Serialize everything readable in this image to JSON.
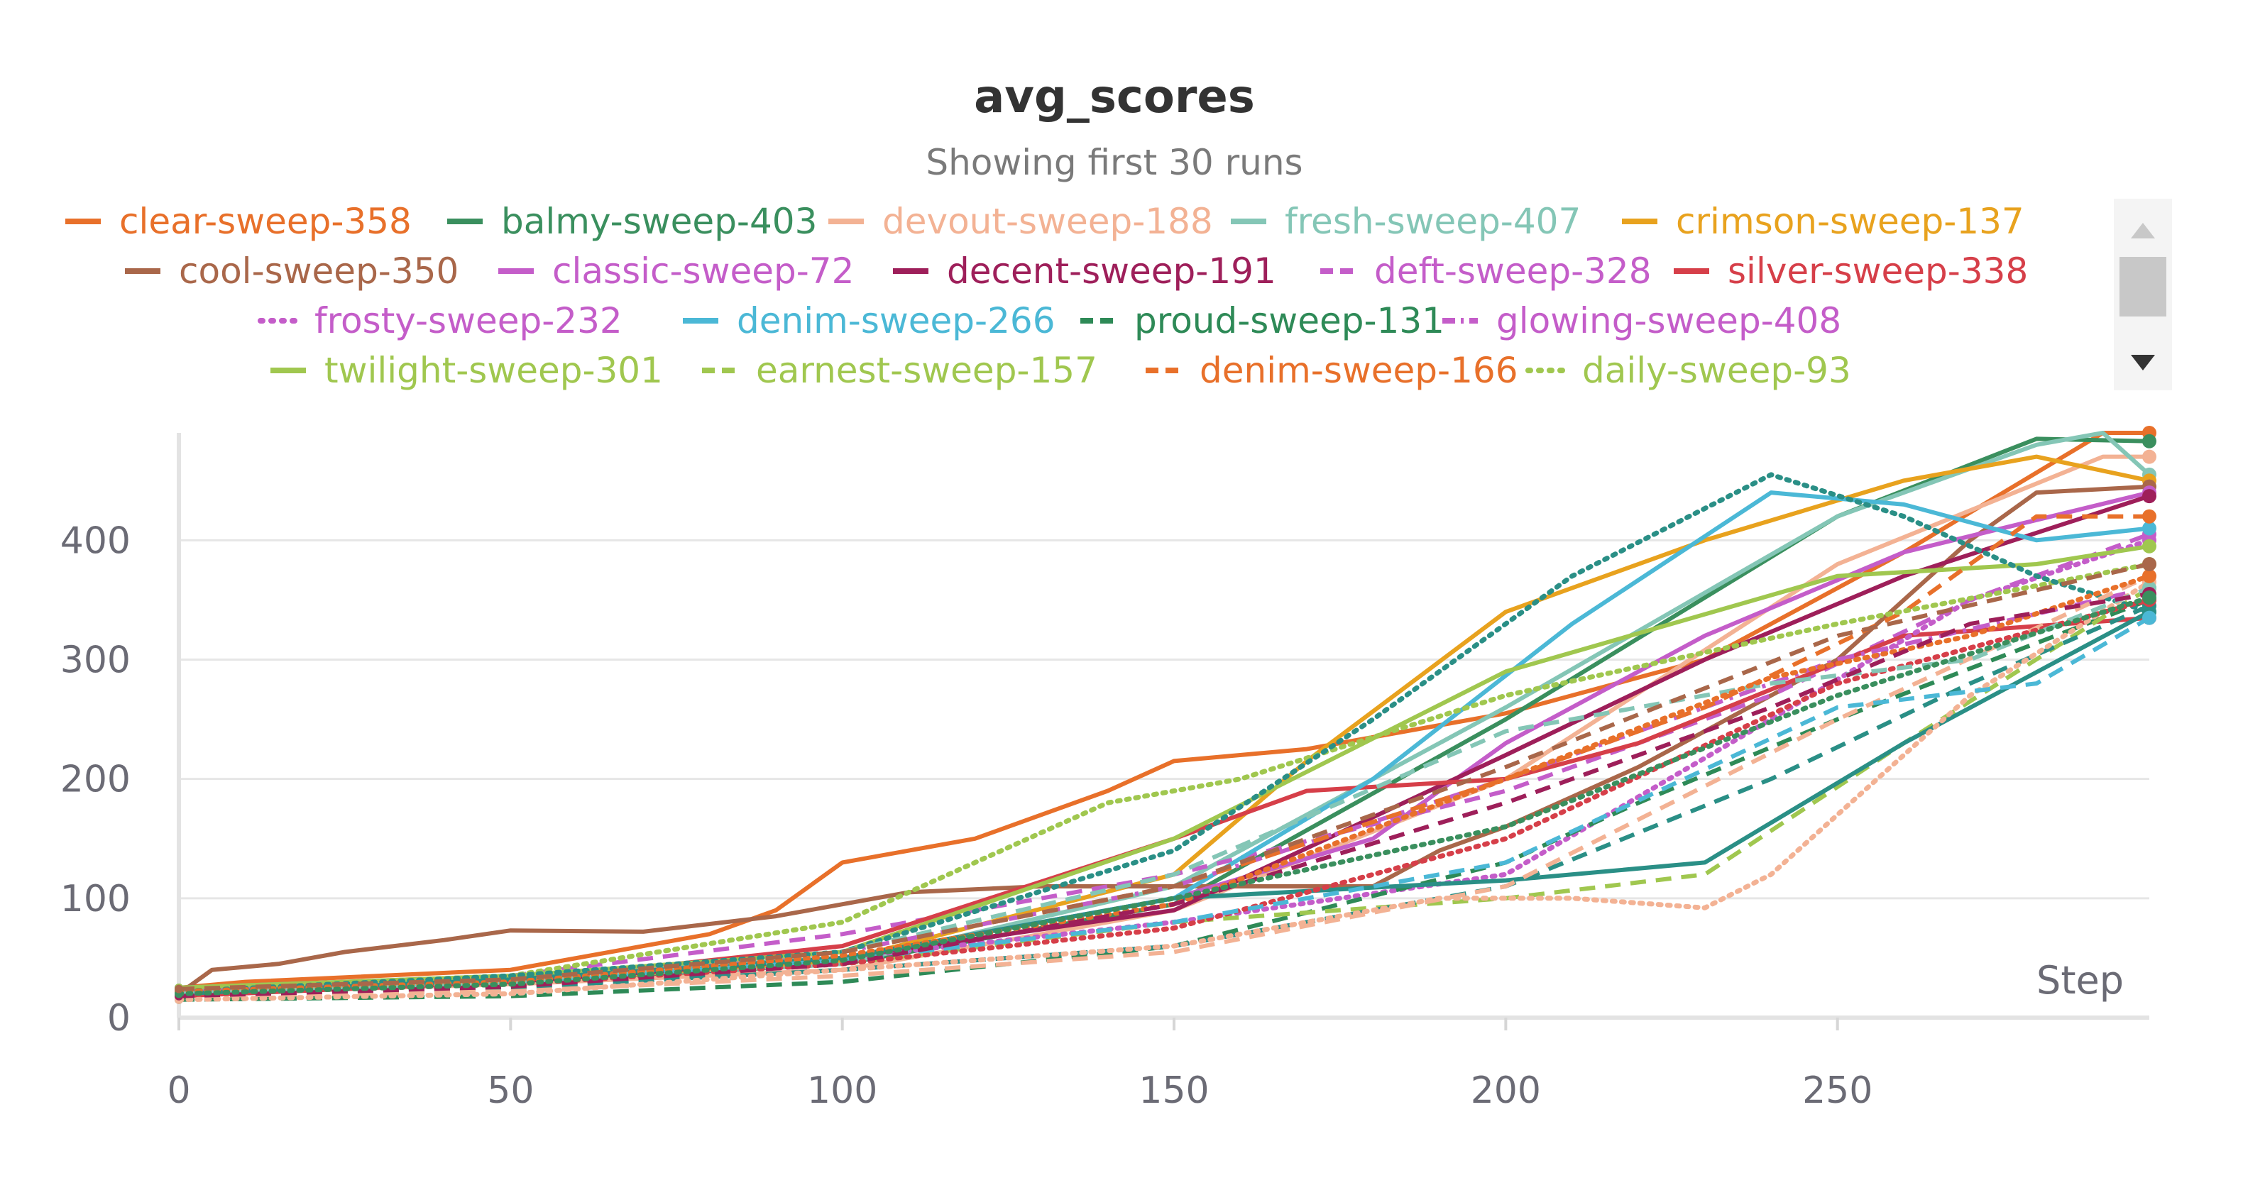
{
  "chart_data": {
    "type": "line",
    "title": "avg_scores",
    "subtitle": "Showing first 30 runs",
    "xlabel": "Step",
    "ylabel": "",
    "xlim": [
      0,
      297
    ],
    "ylim": [
      0,
      490
    ],
    "x_ticks": [
      0,
      50,
      100,
      150,
      200,
      250
    ],
    "y_ticks": [
      0,
      100,
      200,
      300,
      400
    ],
    "grid": true,
    "legend_position": "top",
    "series": [
      {
        "name": "clear-sweep-358",
        "color": "#e8702a",
        "dash": "solid",
        "points": [
          [
            0,
            25
          ],
          [
            10,
            30
          ],
          [
            50,
            40
          ],
          [
            80,
            70
          ],
          [
            90,
            90
          ],
          [
            100,
            130
          ],
          [
            120,
            150
          ],
          [
            140,
            190
          ],
          [
            150,
            215
          ],
          [
            170,
            225
          ],
          [
            200,
            255
          ],
          [
            230,
            300
          ],
          [
            260,
            390
          ],
          [
            290,
            490
          ],
          [
            297,
            490
          ]
        ]
      },
      {
        "name": "balmy-sweep-403",
        "color": "#3a8f5e",
        "dash": "solid",
        "points": [
          [
            0,
            22
          ],
          [
            50,
            30
          ],
          [
            100,
            45
          ],
          [
            150,
            95
          ],
          [
            200,
            250
          ],
          [
            250,
            420
          ],
          [
            280,
            485
          ],
          [
            297,
            483
          ]
        ]
      },
      {
        "name": "devout-sweep-188",
        "color": "#f3b294",
        "dash": "solid",
        "points": [
          [
            0,
            20
          ],
          [
            50,
            28
          ],
          [
            100,
            40
          ],
          [
            150,
            90
          ],
          [
            200,
            200
          ],
          [
            250,
            380
          ],
          [
            290,
            470
          ],
          [
            297,
            470
          ]
        ]
      },
      {
        "name": "fresh-sweep-407",
        "color": "#84c6b6",
        "dash": "solid",
        "points": [
          [
            0,
            24
          ],
          [
            50,
            32
          ],
          [
            100,
            45
          ],
          [
            150,
            110
          ],
          [
            200,
            260
          ],
          [
            250,
            420
          ],
          [
            280,
            480
          ],
          [
            290,
            490
          ],
          [
            297,
            455
          ]
        ]
      },
      {
        "name": "crimson-sweep-137",
        "color": "#e8a21e",
        "dash": "solid",
        "points": [
          [
            0,
            22
          ],
          [
            50,
            30
          ],
          [
            100,
            48
          ],
          [
            150,
            120
          ],
          [
            170,
            215
          ],
          [
            200,
            340
          ],
          [
            230,
            400
          ],
          [
            260,
            450
          ],
          [
            280,
            470
          ],
          [
            297,
            450
          ]
        ]
      },
      {
        "name": "cool-sweep-350",
        "color": "#a9674a",
        "dash": "solid",
        "points": [
          [
            0,
            20
          ],
          [
            5,
            40
          ],
          [
            15,
            45
          ],
          [
            25,
            55
          ],
          [
            40,
            65
          ],
          [
            50,
            73
          ],
          [
            70,
            72
          ],
          [
            90,
            85
          ],
          [
            110,
            105
          ],
          [
            130,
            110
          ],
          [
            160,
            110
          ],
          [
            180,
            110
          ],
          [
            190,
            140
          ],
          [
            200,
            160
          ],
          [
            220,
            210
          ],
          [
            250,
            300
          ],
          [
            270,
            400
          ],
          [
            280,
            440
          ],
          [
            297,
            445
          ]
        ]
      },
      {
        "name": "classic-sweep-72",
        "color": "#c45dc9",
        "dash": "solid",
        "points": [
          [
            0,
            20
          ],
          [
            50,
            30
          ],
          [
            100,
            50
          ],
          [
            150,
            100
          ],
          [
            180,
            150
          ],
          [
            200,
            230
          ],
          [
            230,
            320
          ],
          [
            260,
            390
          ],
          [
            297,
            440
          ]
        ]
      },
      {
        "name": "decent-sweep-191",
        "color": "#9e1f5a",
        "dash": "solid",
        "points": [
          [
            0,
            20
          ],
          [
            50,
            30
          ],
          [
            100,
            50
          ],
          [
            150,
            90
          ],
          [
            200,
            220
          ],
          [
            230,
            300
          ],
          [
            260,
            370
          ],
          [
            297,
            437
          ]
        ]
      },
      {
        "name": "deft-sweep-328",
        "color": "#c45dc9",
        "dash": "dashed",
        "points": [
          [
            0,
            22
          ],
          [
            50,
            35
          ],
          [
            100,
            70
          ],
          [
            150,
            120
          ],
          [
            200,
            190
          ],
          [
            240,
            270
          ],
          [
            270,
            350
          ],
          [
            297,
            405
          ]
        ]
      },
      {
        "name": "silver-sweep-338",
        "color": "#d63f49",
        "dash": "solid",
        "points": [
          [
            0,
            18
          ],
          [
            50,
            30
          ],
          [
            100,
            60
          ],
          [
            150,
            150
          ],
          [
            170,
            190
          ],
          [
            200,
            200
          ],
          [
            220,
            230
          ],
          [
            260,
            320
          ],
          [
            297,
            335
          ]
        ]
      },
      {
        "name": "frosty-sweep-232",
        "color": "#c45dc9",
        "dash": "dotted",
        "points": [
          [
            0,
            20
          ],
          [
            50,
            30
          ],
          [
            100,
            50
          ],
          [
            150,
            80
          ],
          [
            200,
            120
          ],
          [
            240,
            250
          ],
          [
            270,
            350
          ],
          [
            297,
            400
          ]
        ]
      },
      {
        "name": "denim-sweep-266",
        "color": "#4bb8d6",
        "dash": "solid",
        "points": [
          [
            0,
            25
          ],
          [
            50,
            35
          ],
          [
            100,
            50
          ],
          [
            150,
            100
          ],
          [
            180,
            200
          ],
          [
            210,
            330
          ],
          [
            240,
            440
          ],
          [
            260,
            430
          ],
          [
            280,
            400
          ],
          [
            297,
            410
          ]
        ]
      },
      {
        "name": "proud-sweep-131",
        "color": "#2e8a57",
        "dash": "dashed",
        "points": [
          [
            0,
            15
          ],
          [
            50,
            18
          ],
          [
            100,
            30
          ],
          [
            150,
            60
          ],
          [
            200,
            130
          ],
          [
            220,
            180
          ],
          [
            250,
            250
          ],
          [
            297,
            350
          ]
        ]
      },
      {
        "name": "glowing-sweep-408",
        "color": "#c45dc9",
        "dash": "dashdot",
        "points": [
          [
            0,
            22
          ],
          [
            50,
            32
          ],
          [
            100,
            55
          ],
          [
            150,
            110
          ],
          [
            200,
            200
          ],
          [
            250,
            300
          ],
          [
            297,
            360
          ]
        ]
      },
      {
        "name": "twilight-sweep-301",
        "color": "#a0c74f",
        "dash": "solid",
        "points": [
          [
            0,
            25
          ],
          [
            50,
            35
          ],
          [
            100,
            55
          ],
          [
            150,
            150
          ],
          [
            200,
            290
          ],
          [
            250,
            370
          ],
          [
            280,
            380
          ],
          [
            297,
            395
          ]
        ]
      },
      {
        "name": "earnest-sweep-157",
        "color": "#a0c74f",
        "dash": "dashed",
        "points": [
          [
            0,
            22
          ],
          [
            50,
            30
          ],
          [
            100,
            45
          ],
          [
            150,
            80
          ],
          [
            200,
            100
          ],
          [
            230,
            120
          ],
          [
            260,
            230
          ],
          [
            297,
            360
          ]
        ]
      },
      {
        "name": "denim-sweep-166",
        "color": "#e8702a",
        "dash": "dashed",
        "points": [
          [
            0,
            20
          ],
          [
            50,
            30
          ],
          [
            100,
            55
          ],
          [
            150,
            110
          ],
          [
            200,
            200
          ],
          [
            230,
            260
          ],
          [
            260,
            340
          ],
          [
            280,
            420
          ],
          [
            297,
            420
          ]
        ]
      },
      {
        "name": "daily-sweep-93",
        "color": "#a0c74f",
        "dash": "dotted",
        "points": [
          [
            0,
            24
          ],
          [
            50,
            35
          ],
          [
            100,
            80
          ],
          [
            140,
            180
          ],
          [
            160,
            200
          ],
          [
            200,
            270
          ],
          [
            250,
            330
          ],
          [
            297,
            380
          ]
        ]
      },
      {
        "color": "#2a8f86",
        "dash": "dotted",
        "points": [
          [
            0,
            22
          ],
          [
            50,
            35
          ],
          [
            100,
            55
          ],
          [
            150,
            140
          ],
          [
            180,
            250
          ],
          [
            210,
            370
          ],
          [
            240,
            455
          ],
          [
            260,
            420
          ],
          [
            280,
            370
          ],
          [
            297,
            340
          ]
        ]
      },
      {
        "color": "#2a8f86",
        "dash": "solid",
        "points": [
          [
            0,
            20
          ],
          [
            50,
            32
          ],
          [
            100,
            50
          ],
          [
            150,
            100
          ],
          [
            200,
            115
          ],
          [
            230,
            130
          ],
          [
            260,
            230
          ],
          [
            297,
            340
          ]
        ]
      },
      {
        "color": "#2a8f86",
        "dash": "dashed",
        "points": [
          [
            0,
            18
          ],
          [
            50,
            25
          ],
          [
            100,
            40
          ],
          [
            150,
            60
          ],
          [
            200,
            110
          ],
          [
            240,
            200
          ],
          [
            270,
            280
          ],
          [
            297,
            345
          ]
        ]
      },
      {
        "color": "#f3b294",
        "dash": "dotted",
        "points": [
          [
            0,
            15
          ],
          [
            50,
            20
          ],
          [
            100,
            40
          ],
          [
            150,
            60
          ],
          [
            190,
            100
          ],
          [
            210,
            100
          ],
          [
            230,
            92
          ],
          [
            240,
            120
          ],
          [
            270,
            270
          ],
          [
            297,
            365
          ]
        ]
      },
      {
        "color": "#f3b294",
        "dash": "dashed",
        "points": [
          [
            0,
            18
          ],
          [
            50,
            22
          ],
          [
            100,
            35
          ],
          [
            150,
            55
          ],
          [
            200,
            110
          ],
          [
            250,
            250
          ],
          [
            297,
            370
          ]
        ]
      },
      {
        "color": "#d63f49",
        "dash": "dotted",
        "points": [
          [
            0,
            20
          ],
          [
            50,
            28
          ],
          [
            100,
            45
          ],
          [
            150,
            75
          ],
          [
            200,
            150
          ],
          [
            250,
            280
          ],
          [
            297,
            350
          ]
        ]
      },
      {
        "color": "#4bb8d6",
        "dash": "dashed",
        "points": [
          [
            0,
            22
          ],
          [
            50,
            30
          ],
          [
            100,
            48
          ],
          [
            150,
            80
          ],
          [
            200,
            130
          ],
          [
            250,
            260
          ],
          [
            280,
            280
          ],
          [
            297,
            335
          ]
        ]
      },
      {
        "color": "#84c6b6",
        "dash": "dashed",
        "points": [
          [
            0,
            20
          ],
          [
            50,
            30
          ],
          [
            100,
            55
          ],
          [
            150,
            120
          ],
          [
            200,
            240
          ],
          [
            240,
            280
          ],
          [
            270,
            300
          ],
          [
            297,
            360
          ]
        ]
      },
      {
        "color": "#e8702a",
        "dash": "dotted",
        "points": [
          [
            0,
            22
          ],
          [
            50,
            30
          ],
          [
            100,
            52
          ],
          [
            150,
            95
          ],
          [
            200,
            200
          ],
          [
            240,
            285
          ],
          [
            270,
            320
          ],
          [
            297,
            370
          ]
        ]
      },
      {
        "color": "#9e1f5a",
        "dash": "dashed",
        "points": [
          [
            0,
            18
          ],
          [
            50,
            26
          ],
          [
            100,
            45
          ],
          [
            150,
            95
          ],
          [
            200,
            180
          ],
          [
            240,
            260
          ],
          [
            270,
            330
          ],
          [
            297,
            355
          ]
        ]
      },
      {
        "color": "#3a8f5e",
        "dash": "dotted",
        "points": [
          [
            0,
            20
          ],
          [
            50,
            28
          ],
          [
            100,
            48
          ],
          [
            150,
            100
          ],
          [
            200,
            160
          ],
          [
            250,
            270
          ],
          [
            297,
            352
          ]
        ]
      },
      {
        "color": "#a9674a",
        "dash": "dashed",
        "points": [
          [
            0,
            24
          ],
          [
            50,
            32
          ],
          [
            100,
            55
          ],
          [
            150,
            110
          ],
          [
            200,
            210
          ],
          [
            250,
            320
          ],
          [
            297,
            380
          ]
        ]
      }
    ]
  },
  "legend": {
    "scroll_up_icon": "triangle-up-icon",
    "scroll_down_icon": "triangle-down-icon"
  }
}
